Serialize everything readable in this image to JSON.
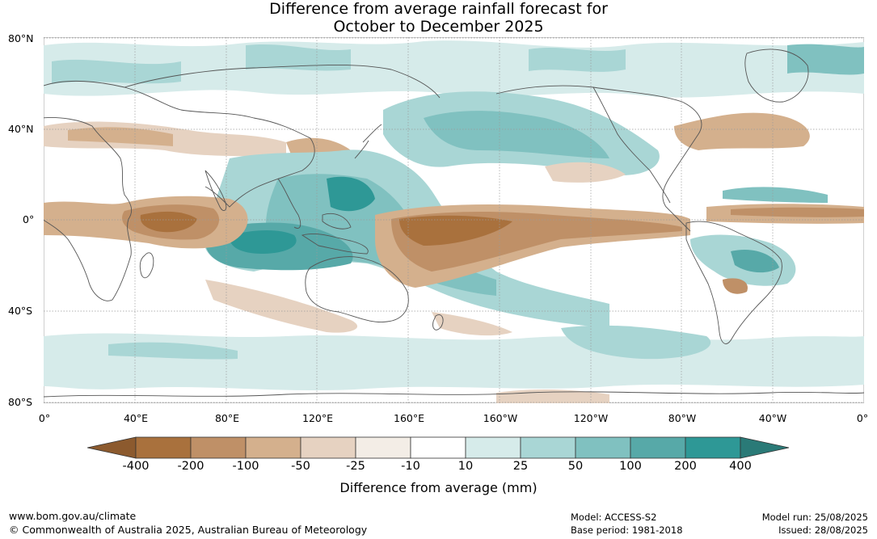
{
  "title_line1": "Difference from average rainfall forecast for",
  "title_line2": "October to December 2025",
  "lat_labels": [
    "80°N",
    "40°N",
    "0°",
    "40°S",
    "80°S"
  ],
  "lon_labels": [
    "0°",
    "40°E",
    "80°E",
    "120°E",
    "160°E",
    "160°W",
    "120°W",
    "80°W",
    "40°W",
    "0°"
  ],
  "colorbar": {
    "title": "Difference from average (mm)",
    "tick_labels": [
      "-400",
      "-200",
      "-100",
      "-50",
      "-25",
      "-10",
      "10",
      "25",
      "50",
      "100",
      "200",
      "400"
    ],
    "colors": [
      "#8c5a2e",
      "#a9713d",
      "#bf9067",
      "#d4b08d",
      "#e6d2c1",
      "#f3ede6",
      "#ffffff",
      "#d6ebea",
      "#a9d6d5",
      "#80c1c0",
      "#57a9a8",
      "#2e9896",
      "#2a7a77"
    ]
  },
  "footer": {
    "url": "www.bom.gov.au/climate",
    "copyright": "© Commonwealth of Australia 2025, Australian Bureau of Meteorology",
    "model": "Model: ACCESS-S2",
    "base_period": "Base period: 1981-2018",
    "model_run": "Model run: 25/08/2025",
    "issued": "Issued: 28/08/2025"
  }
}
